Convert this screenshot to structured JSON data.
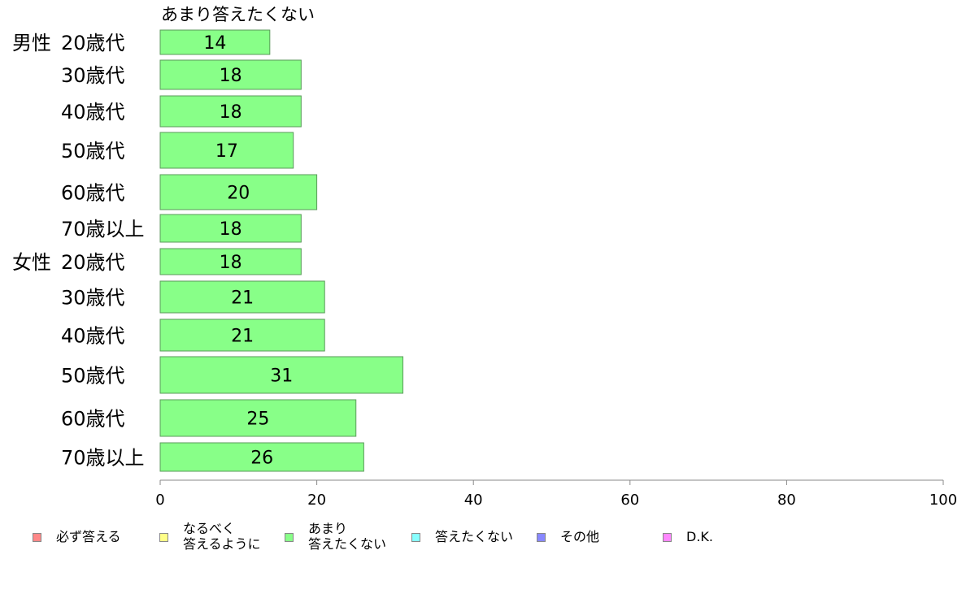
{
  "chart_data": {
    "type": "bar",
    "orientation": "horizontal",
    "series_label": "あまり答えたくない",
    "groups": [
      {
        "label": "男性",
        "categories": [
          "20歳代",
          "30歳代",
          "40歳代",
          "50歳代",
          "60歳代",
          "70歳以上"
        ],
        "values": [
          14,
          18,
          18,
          17,
          20,
          18
        ]
      },
      {
        "label": "女性",
        "categories": [
          "20歳代",
          "30歳代",
          "40歳代",
          "50歳代",
          "60歳代",
          "70歳以上"
        ],
        "values": [
          18,
          21,
          21,
          31,
          25,
          26
        ]
      }
    ],
    "x_ticks": [
      0,
      20,
      40,
      60,
      80,
      100
    ],
    "xlim": [
      0,
      100
    ],
    "bar_color": "#88ff88",
    "bar_border_color": "#5a9a5a",
    "legend": [
      {
        "label": "必ず答える",
        "color": "#ff8888"
      },
      {
        "label": "なるべく\n答えるように",
        "color": "#ffff88"
      },
      {
        "label": "あまり\n答えたくない",
        "color": "#88ff88"
      },
      {
        "label": "答えたくない",
        "color": "#88ffff"
      },
      {
        "label": "その他",
        "color": "#8888ff"
      },
      {
        "label": "D.K.",
        "color": "#ff88ff"
      }
    ]
  }
}
